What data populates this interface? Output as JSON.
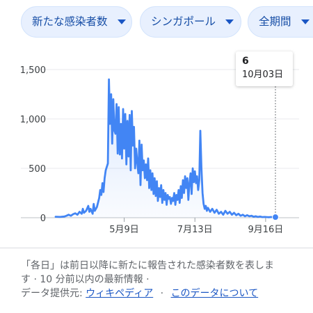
{
  "filters": [
    {
      "label": "新たな感染者数"
    },
    {
      "label": "シンガポール"
    },
    {
      "label": "全期間"
    }
  ],
  "tooltip": {
    "value": "6",
    "date": "10月03日"
  },
  "footer": {
    "line1": "「各日」は前日以降に新たに報告された感染者数を表しま",
    "line2": "す · 10 分前以内の最新情報 ·",
    "source_label": "データ提供元:",
    "source_link": "ウィキペディア",
    "separator": "·",
    "about_link": "このデータについて"
  },
  "colors": {
    "line": "#4285f4",
    "chip_bg": "#e8f0fe",
    "chip_text": "#174ea6",
    "link": "#1a56c4"
  },
  "chart_data": {
    "type": "line",
    "title": "",
    "ylabel": "",
    "xlabel": "",
    "ylim": [
      0,
      1500
    ],
    "yticks": [
      0,
      500,
      1000,
      1500
    ],
    "ytick_labels": [
      "0",
      "500",
      "1,000",
      "1,500"
    ],
    "xlim": [
      0,
      218
    ],
    "xticks": [
      {
        "x": 63,
        "label": "5月9日"
      },
      {
        "x": 128,
        "label": "7月13日"
      },
      {
        "x": 193,
        "label": "9月16日"
      }
    ],
    "grid": "horizontal",
    "area_fill": true,
    "series": [
      {
        "name": "",
        "points": [
          [
            0,
            10
          ],
          [
            4,
            8
          ],
          [
            8,
            12
          ],
          [
            10,
            20
          ],
          [
            12,
            30
          ],
          [
            14,
            20
          ],
          [
            16,
            35
          ],
          [
            18,
            45
          ],
          [
            20,
            30
          ],
          [
            22,
            60
          ],
          [
            24,
            40
          ],
          [
            25,
            90
          ],
          [
            26,
            50
          ],
          [
            28,
            70
          ],
          [
            30,
            120
          ],
          [
            31,
            60
          ],
          [
            32,
            90
          ],
          [
            34,
            40
          ],
          [
            35,
            140
          ],
          [
            36,
            70
          ],
          [
            38,
            110
          ],
          [
            40,
            200
          ],
          [
            41,
            280
          ],
          [
            42,
            230
          ],
          [
            43,
            350
          ],
          [
            44,
            260
          ],
          [
            45,
            400
          ],
          [
            46,
            480
          ],
          [
            48,
            550
          ],
          [
            49,
            1400
          ],
          [
            50,
            950
          ],
          [
            51,
            1250
          ],
          [
            52,
            750
          ],
          [
            53,
            1200
          ],
          [
            54,
            880
          ],
          [
            55,
            850
          ],
          [
            56,
            1150
          ],
          [
            57,
            650
          ],
          [
            58,
            1120
          ],
          [
            59,
            640
          ],
          [
            60,
            950
          ],
          [
            61,
            600
          ],
          [
            62,
            1100
          ],
          [
            63,
            700
          ],
          [
            64,
            1050
          ],
          [
            65,
            540
          ],
          [
            66,
            980
          ],
          [
            67,
            620
          ],
          [
            68,
            1040
          ],
          [
            69,
            480
          ],
          [
            70,
            1080
          ],
          [
            71,
            730
          ],
          [
            72,
            920
          ],
          [
            73,
            500
          ],
          [
            74,
            700
          ],
          [
            75,
            560
          ],
          [
            76,
            450
          ],
          [
            77,
            780
          ],
          [
            78,
            330
          ],
          [
            79,
            740
          ],
          [
            80,
            480
          ],
          [
            81,
            580
          ],
          [
            82,
            400
          ],
          [
            83,
            540
          ],
          [
            84,
            380
          ],
          [
            85,
            600
          ],
          [
            86,
            300
          ],
          [
            87,
            480
          ],
          [
            88,
            280
          ],
          [
            89,
            450
          ],
          [
            90,
            240
          ],
          [
            91,
            400
          ],
          [
            92,
            220
          ],
          [
            93,
            370
          ],
          [
            94,
            170
          ],
          [
            95,
            300
          ],
          [
            96,
            210
          ],
          [
            97,
            330
          ],
          [
            98,
            150
          ],
          [
            99,
            280
          ],
          [
            100,
            180
          ],
          [
            101,
            250
          ],
          [
            102,
            130
          ],
          [
            103,
            230
          ],
          [
            104,
            190
          ],
          [
            105,
            210
          ],
          [
            106,
            140
          ],
          [
            107,
            200
          ],
          [
            108,
            170
          ],
          [
            109,
            250
          ],
          [
            110,
            130
          ],
          [
            111,
            230
          ],
          [
            112,
            180
          ],
          [
            113,
            280
          ],
          [
            114,
            150
          ],
          [
            115,
            320
          ],
          [
            116,
            200
          ],
          [
            117,
            380
          ],
          [
            118,
            250
          ],
          [
            119,
            420
          ],
          [
            120,
            300
          ],
          [
            121,
            400
          ],
          [
            122,
            180
          ],
          [
            123,
            350
          ],
          [
            124,
            450
          ],
          [
            125,
            240
          ],
          [
            126,
            500
          ],
          [
            127,
            360
          ],
          [
            128,
            470
          ],
          [
            129,
            350
          ],
          [
            130,
            420
          ],
          [
            131,
            280
          ],
          [
            132,
            380
          ],
          [
            133,
            880
          ],
          [
            134,
            500
          ],
          [
            135,
            250
          ],
          [
            136,
            140
          ],
          [
            137,
            90
          ],
          [
            138,
            120
          ],
          [
            139,
            70
          ],
          [
            140,
            100
          ],
          [
            142,
            60
          ],
          [
            144,
            90
          ],
          [
            146,
            50
          ],
          [
            148,
            80
          ],
          [
            150,
            40
          ],
          [
            152,
            60
          ],
          [
            154,
            30
          ],
          [
            156,
            70
          ],
          [
            158,
            40
          ],
          [
            160,
            60
          ],
          [
            162,
            30
          ],
          [
            164,
            50
          ],
          [
            166,
            25
          ],
          [
            168,
            40
          ],
          [
            170,
            20
          ],
          [
            172,
            30
          ],
          [
            174,
            15
          ],
          [
            176,
            25
          ],
          [
            178,
            15
          ],
          [
            180,
            20
          ],
          [
            182,
            10
          ],
          [
            184,
            15
          ],
          [
            186,
            8
          ],
          [
            188,
            12
          ],
          [
            190,
            6
          ],
          [
            192,
            8
          ],
          [
            194,
            6
          ],
          [
            196,
            5
          ],
          [
            198,
            7
          ],
          [
            200,
            5
          ],
          [
            202,
            6
          ]
        ]
      }
    ],
    "highlight": {
      "x": 202,
      "y": 6
    }
  }
}
